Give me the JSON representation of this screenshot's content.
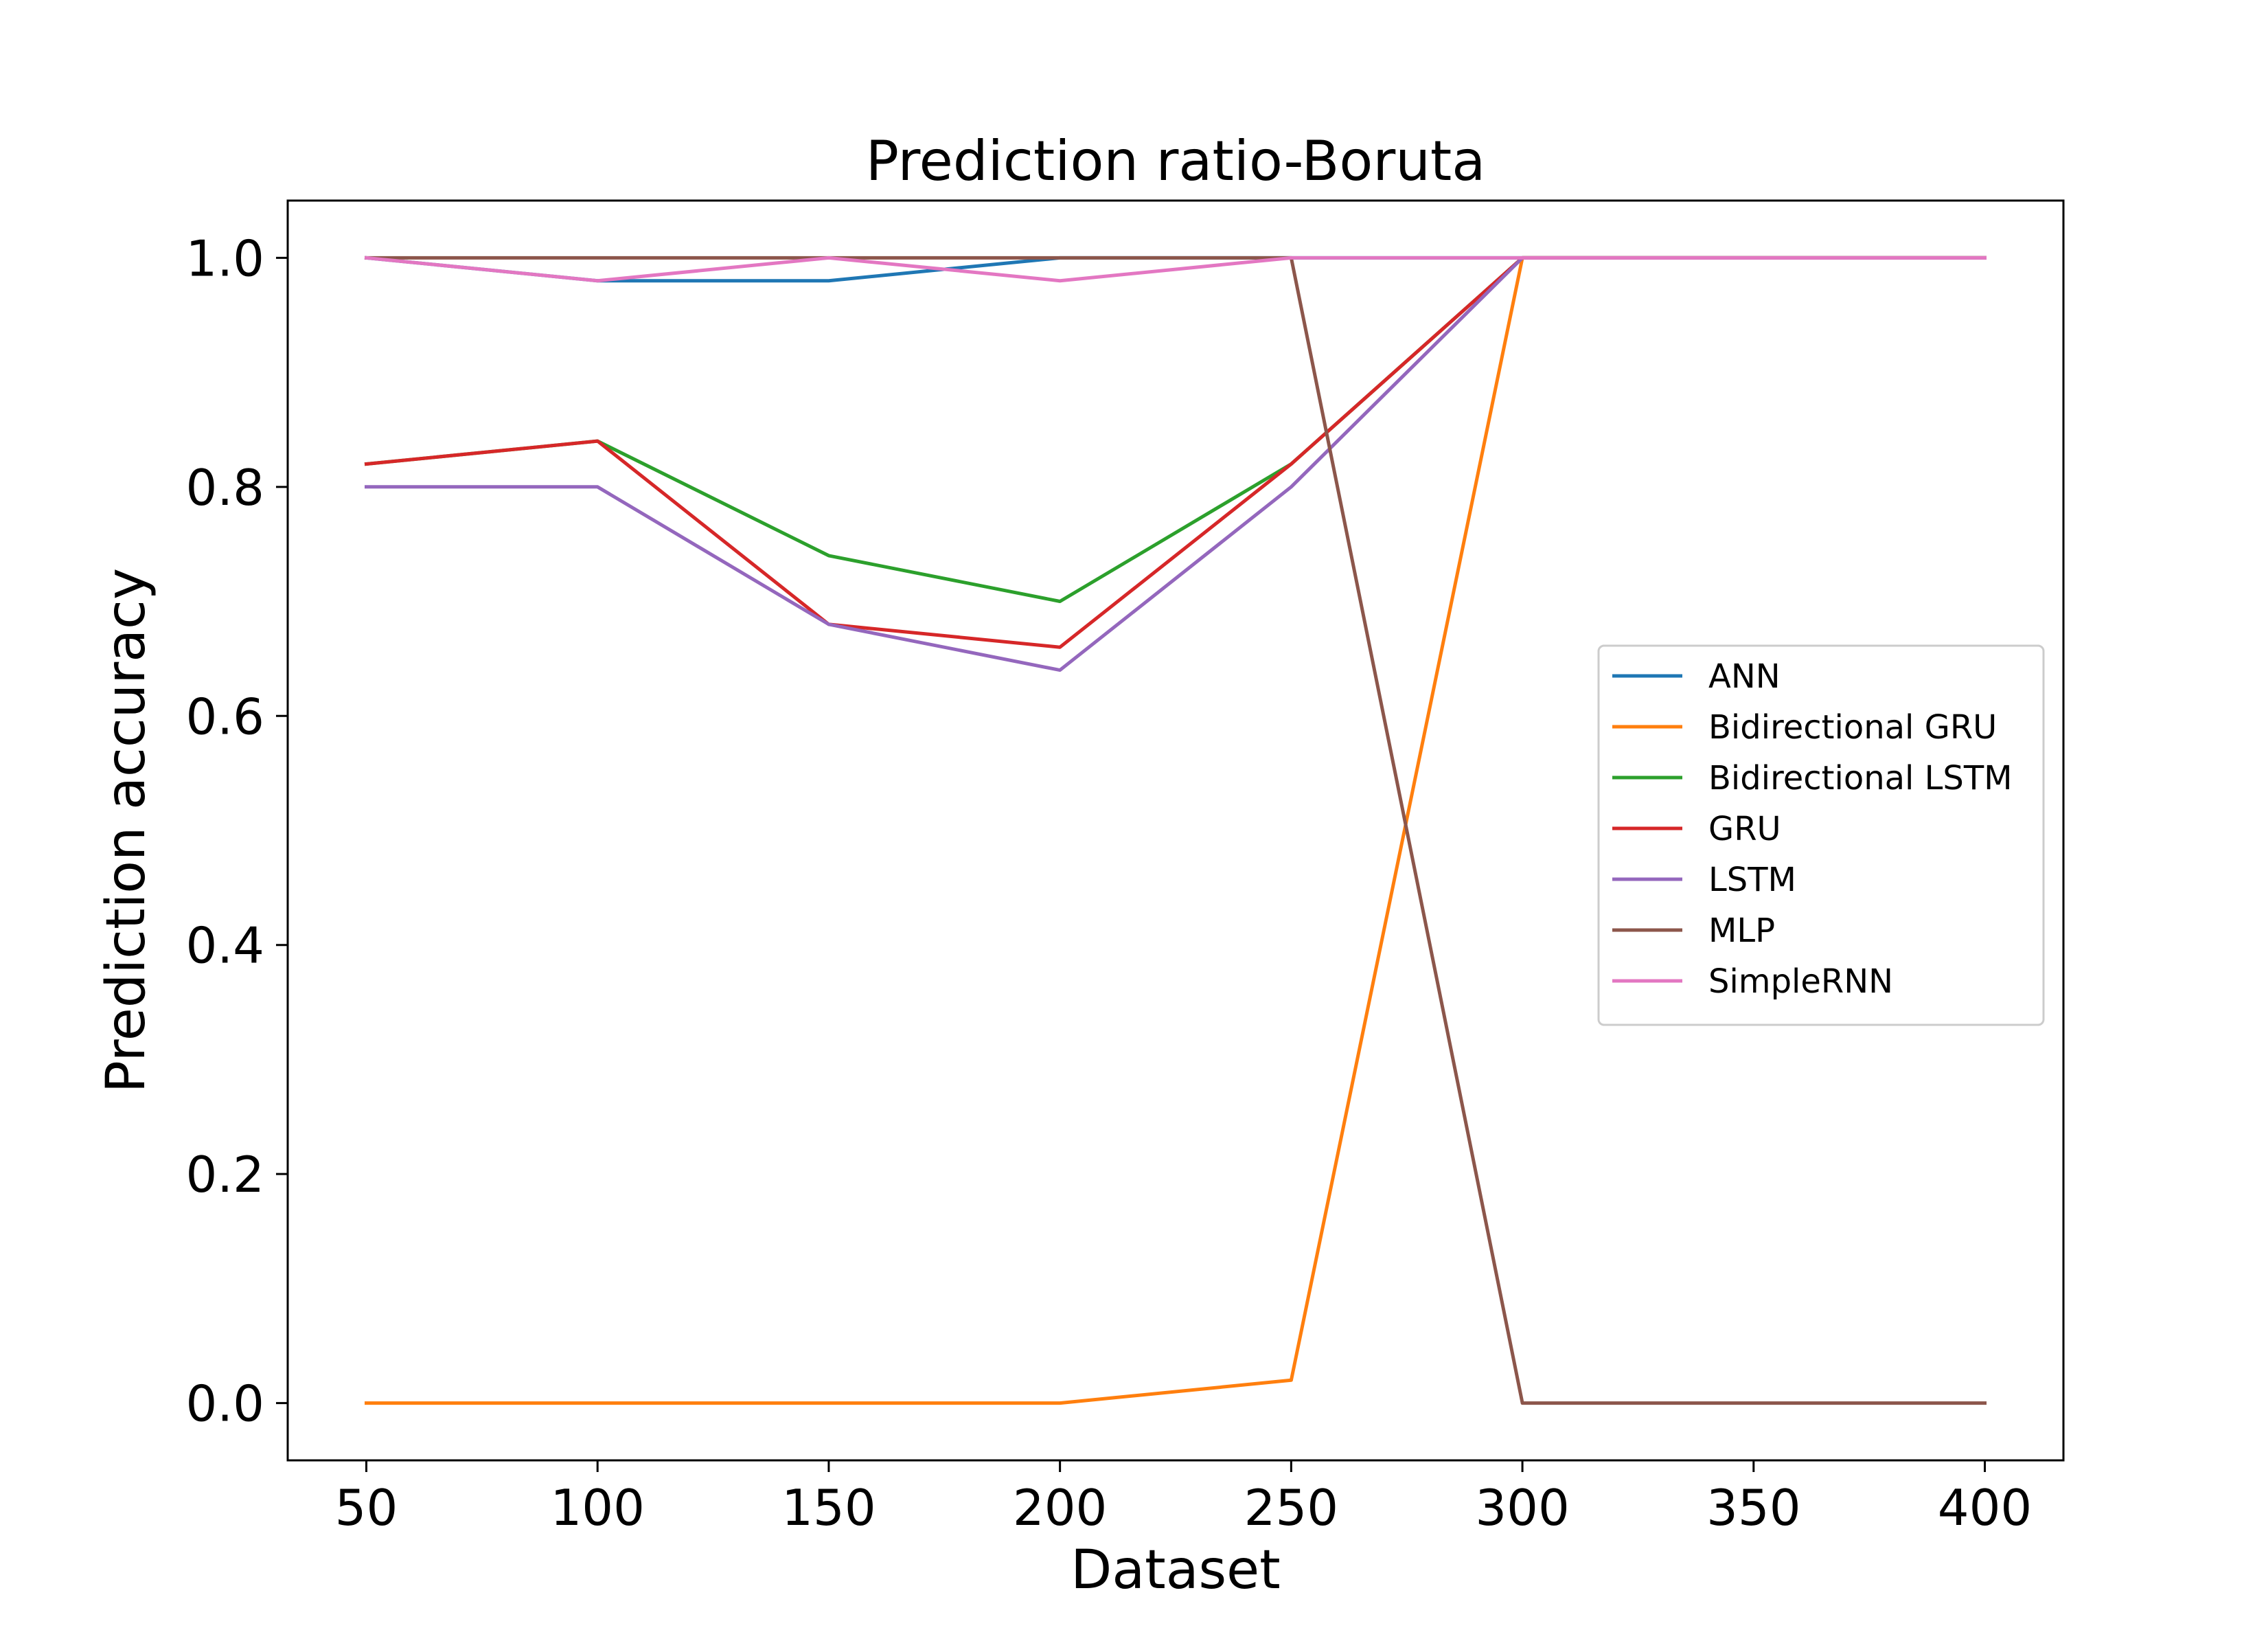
{
  "chart_data": {
    "type": "line",
    "title": "Prediction ratio-Boruta",
    "xlabel": "Dataset",
    "ylabel": "Prediction accuracy",
    "x": [
      50,
      100,
      150,
      200,
      250,
      300,
      350,
      400
    ],
    "xlim": [
      33,
      417
    ],
    "ylim": [
      -0.05,
      1.05
    ],
    "xticks": [
      "50",
      "100",
      "150",
      "200",
      "250",
      "300",
      "350",
      "400"
    ],
    "yticks": [
      "0.0",
      "0.2",
      "0.4",
      "0.6",
      "0.8",
      "1.0"
    ],
    "grid": false,
    "legend_position": "center-right",
    "series": [
      {
        "name": "ANN",
        "color": "#1f77b4",
        "values": [
          1.0,
          0.98,
          0.98,
          1.0,
          1.0,
          1.0,
          1.0,
          1.0
        ]
      },
      {
        "name": "Bidirectional GRU",
        "color": "#ff7f0e",
        "values": [
          0.0,
          0.0,
          0.0,
          0.0,
          0.02,
          1.0,
          1.0,
          1.0
        ]
      },
      {
        "name": "Bidirectional LSTM",
        "color": "#2ca02c",
        "values": [
          0.82,
          0.84,
          0.74,
          0.7,
          0.82,
          1.0,
          1.0,
          1.0
        ]
      },
      {
        "name": "GRU",
        "color": "#d62728",
        "values": [
          0.82,
          0.84,
          0.68,
          0.66,
          0.82,
          1.0,
          1.0,
          1.0
        ]
      },
      {
        "name": "LSTM",
        "color": "#9467bd",
        "values": [
          0.8,
          0.8,
          0.68,
          0.64,
          0.8,
          1.0,
          1.0,
          1.0
        ]
      },
      {
        "name": "MLP",
        "color": "#8c564b",
        "values": [
          1.0,
          1.0,
          1.0,
          1.0,
          1.0,
          0.0,
          0.0,
          0.0
        ]
      },
      {
        "name": "SimpleRNN",
        "color": "#e377c2",
        "values": [
          1.0,
          0.98,
          1.0,
          0.98,
          1.0,
          1.0,
          1.0,
          1.0
        ]
      }
    ]
  }
}
